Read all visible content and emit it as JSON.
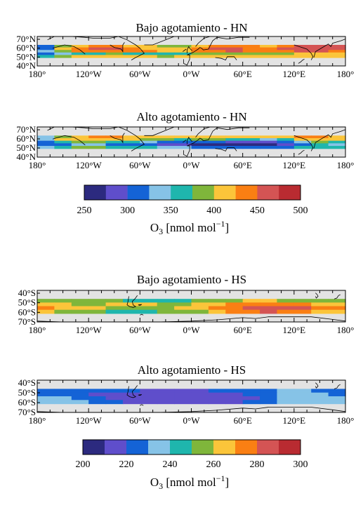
{
  "chart_data": [
    {
      "type": "heatmap",
      "title": "Bajo agotamiento - HN",
      "hemisphere": "north",
      "x_tick_labels": [
        "180°",
        "120°W",
        "60°W",
        "0°W",
        "60°E",
        "120°E",
        "180°"
      ],
      "y_tick_labels": [
        "70°N",
        "60°N",
        "50°N",
        "40°N"
      ],
      "xlim": [
        -180,
        180
      ],
      "ylim": [
        35,
        70
      ],
      "data_lat_range": [
        45,
        60
      ],
      "row_lats": [
        58.5,
        55.5,
        52.5,
        49.5,
        46.5
      ],
      "x": [
        -170,
        -150,
        -130,
        -110,
        -90,
        -70,
        -50,
        -30,
        -10,
        10,
        30,
        50,
        70,
        90,
        110,
        130,
        150,
        170
      ],
      "values": [
        [
          320,
          375,
          420,
          440,
          440,
          420,
          400,
          390,
          390,
          410,
          430,
          440,
          430,
          420,
          440,
          470,
          470,
          460
        ],
        [
          310,
          400,
          440,
          450,
          460,
          440,
          420,
          410,
          420,
          430,
          450,
          450,
          440,
          440,
          450,
          470,
          470,
          460
        ],
        [
          330,
          390,
          430,
          440,
          440,
          430,
          430,
          420,
          420,
          430,
          440,
          450,
          440,
          430,
          440,
          450,
          450,
          440
        ],
        [
          300,
          330,
          360,
          370,
          380,
          370,
          370,
          360,
          370,
          380,
          380,
          390,
          390,
          380,
          390,
          400,
          400,
          400
        ],
        [
          360,
          380,
          400,
          405,
          410,
          400,
          400,
          395,
          400,
          410,
          410,
          420,
          410,
          400,
          410,
          420,
          420,
          410
        ]
      ],
      "grid": false
    },
    {
      "type": "heatmap",
      "title": "Alto agotamiento - HN",
      "hemisphere": "north",
      "x_tick_labels": [
        "180°",
        "120°W",
        "60°W",
        "0°W",
        "60°E",
        "120°E",
        "180°"
      ],
      "y_tick_labels": [
        "70°N",
        "60°N",
        "50°N",
        "40°N"
      ],
      "xlim": [
        -180,
        180
      ],
      "ylim": [
        35,
        70
      ],
      "data_lat_range": [
        45,
        60
      ],
      "row_lats": [
        58.5,
        55.5,
        52.5,
        49.5,
        46.5
      ],
      "x": [
        -170,
        -150,
        -130,
        -110,
        -90,
        -70,
        -50,
        -30,
        -10,
        10,
        30,
        50,
        70,
        90,
        110,
        130,
        150,
        170
      ],
      "values": [
        [
          330,
          380,
          420,
          430,
          430,
          420,
          410,
          400,
          400,
          410,
          410,
          420,
          410,
          400,
          420,
          440,
          440,
          420
        ],
        [
          340,
          400,
          420,
          420,
          410,
          400,
          390,
          380,
          370,
          380,
          380,
          370,
          360,
          340,
          360,
          400,
          420,
          410
        ],
        [
          320,
          360,
          380,
          380,
          370,
          360,
          340,
          320,
          310,
          300,
          300,
          290,
          280,
          280,
          300,
          340,
          380,
          370
        ],
        [
          300,
          320,
          330,
          330,
          320,
          310,
          300,
          290,
          280,
          270,
          270,
          270,
          260,
          260,
          280,
          320,
          350,
          340
        ],
        [
          330,
          350,
          380,
          380,
          370,
          360,
          350,
          340,
          330,
          320,
          320,
          310,
          300,
          300,
          320,
          350,
          370,
          360
        ]
      ],
      "grid": false
    },
    {
      "type": "heatmap",
      "title": "Bajo agotamiento - HS",
      "hemisphere": "south",
      "x_tick_labels": [
        "180°",
        "120°W",
        "60°W",
        "0°W",
        "60°E",
        "120°E",
        "180°"
      ],
      "y_tick_labels": [
        "40°S",
        "50°S",
        "60°S",
        "70°S"
      ],
      "xlim": [
        -180,
        180
      ],
      "ylim": [
        -72,
        -35
      ],
      "data_lat_range": [
        -45,
        -62
      ],
      "row_lats": [
        -47,
        -51,
        -55,
        -59
      ],
      "x": [
        -170,
        -150,
        -130,
        -110,
        -90,
        -70,
        -50,
        -30,
        -10,
        10,
        30,
        50,
        70,
        90,
        110,
        130,
        150,
        170
      ],
      "values": [
        [
          250,
          255,
          258,
          255,
          250,
          245,
          242,
          245,
          248,
          250,
          255,
          258,
          260,
          262,
          258,
          255,
          252,
          250
        ],
        [
          265,
          260,
          255,
          258,
          262,
          265,
          260,
          255,
          258,
          262,
          268,
          272,
          275,
          278,
          275,
          270,
          268,
          265
        ],
        [
          270,
          268,
          265,
          262,
          255,
          250,
          255,
          258,
          262,
          265,
          270,
          278,
          285,
          288,
          285,
          280,
          275,
          272
        ],
        [
          262,
          258,
          255,
          250,
          245,
          242,
          248,
          250,
          255,
          258,
          262,
          270,
          275,
          280,
          278,
          272,
          268,
          265
        ]
      ],
      "grid": false
    },
    {
      "type": "heatmap",
      "title": "Alto agotamiento - HS",
      "hemisphere": "south",
      "x_tick_labels": [
        "180°",
        "120°W",
        "60°W",
        "0°W",
        "60°E",
        "120°E",
        "180°"
      ],
      "y_tick_labels": [
        "40°S",
        "50°S",
        "60°S",
        "70°S"
      ],
      "xlim": [
        -180,
        180
      ],
      "ylim": [
        -72,
        -35
      ],
      "data_lat_range": [
        -45,
        -62
      ],
      "row_lats": [
        -47,
        -51,
        -55,
        -59
      ],
      "x": [
        -170,
        -150,
        -130,
        -110,
        -90,
        -70,
        -50,
        -30,
        -10,
        10,
        30,
        50,
        70,
        90,
        110,
        130,
        150,
        170
      ],
      "values": [
        [
          225,
          225,
          225,
          225,
          222,
          220,
          218,
          218,
          218,
          218,
          220,
          222,
          225,
          228,
          232,
          232,
          228,
          225
        ],
        [
          225,
          222,
          220,
          218,
          215,
          215,
          215,
          215,
          215,
          215,
          215,
          218,
          220,
          225,
          232,
          238,
          230,
          225
        ],
        [
          235,
          232,
          228,
          222,
          218,
          215,
          213,
          213,
          213,
          213,
          213,
          215,
          218,
          222,
          230,
          235,
          235,
          235
        ],
        [
          238,
          238,
          235,
          228,
          222,
          218,
          216,
          216,
          216,
          216,
          216,
          218,
          222,
          228,
          232,
          235,
          238,
          238
        ]
      ],
      "grid": false
    }
  ],
  "colorbars": [
    {
      "min": 250,
      "max": 500,
      "tick_labels": [
        "250",
        "300",
        "350",
        "400",
        "450",
        "500"
      ],
      "label_main": "O",
      "label_sub": "3",
      "label_unit": " [nmol mol",
      "label_exp": "−1",
      "label_close": "]"
    },
    {
      "min": 200,
      "max": 300,
      "tick_labels": [
        "200",
        "220",
        "240",
        "260",
        "280",
        "300"
      ],
      "label_main": "O",
      "label_sub": "3",
      "label_unit": " [nmol mol",
      "label_exp": "−1",
      "label_close": "]"
    }
  ],
  "colors": {
    "palette": [
      "#2c2a7f",
      "#5f4ecb",
      "#1463d6",
      "#86c3e7",
      "#1fb6ad",
      "#7fb63b",
      "#fbc53a",
      "#fa7f13",
      "#d45454",
      "#b92b31"
    ],
    "missing": "#e3e3e3",
    "coast": "#000000"
  }
}
